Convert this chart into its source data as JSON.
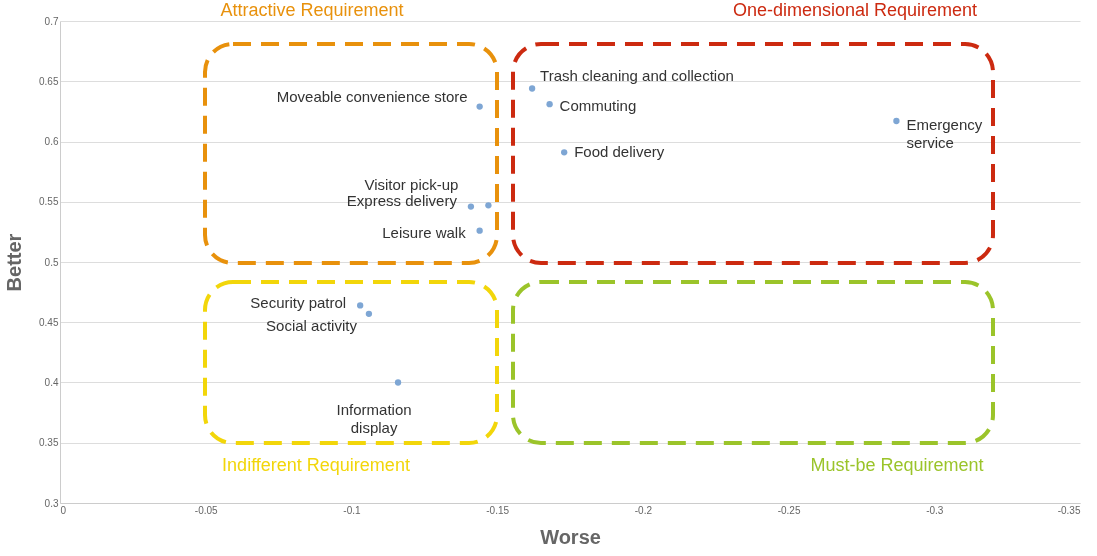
{
  "chart_data": {
    "type": "scatter",
    "xlabel": "Worse",
    "ylabel": "Better",
    "x": [
      -0.144,
      -0.162,
      -0.168,
      -0.173,
      -0.287,
      -0.147,
      -0.141,
      -0.144,
      -0.103,
      -0.106,
      -0.116
    ],
    "series": [
      {
        "color": "#7ea6d4",
        "values": [
          0.629,
          0.644,
          0.631,
          0.591,
          0.617,
          0.547,
          0.546,
          0.526,
          0.464,
          0.457,
          0.4
        ]
      }
    ],
    "xlim": [
      0,
      -0.35
    ],
    "xticks": [
      0,
      -0.05,
      -0.1,
      -0.15,
      -0.2,
      -0.25,
      -0.3,
      -0.35
    ],
    "ylim": [
      0.3,
      0.7
    ],
    "yticks": [
      0.3,
      0.35,
      0.4,
      0.45,
      0.5,
      0.55,
      0.6,
      0.65,
      0.7
    ],
    "grid": "y",
    "marker": "circle",
    "annotations": [
      "Attractive Requirement",
      "One-dimensional Requirement",
      "Indifferent Requirement",
      "Must-be Requirement",
      {
        "text": "Moveable convenience store",
        "x": -0.144,
        "y": 0.629
      },
      {
        "text": "Trash cleaning and collection",
        "x": -0.162,
        "y": 0.644
      },
      {
        "text": "Commuting",
        "x": -0.168,
        "y": 0.631
      },
      {
        "text": "Food delivery",
        "x": -0.173,
        "y": 0.591
      },
      {
        "text": "Emergency service",
        "x": -0.287,
        "y": 0.617
      },
      {
        "text": "Visitor pick-up",
        "x": -0.147,
        "y": 0.547
      },
      {
        "text": "Express delivery",
        "x": -0.141,
        "y": 0.546
      },
      {
        "text": "Leisure walk",
        "x": -0.144,
        "y": 0.526
      },
      {
        "text": "Security patrol",
        "x": -0.103,
        "y": 0.464
      },
      {
        "text": "Social activity",
        "x": -0.106,
        "y": 0.457
      },
      {
        "text": "Information display",
        "x": -0.116,
        "y": 0.4
      }
    ]
  }
}
